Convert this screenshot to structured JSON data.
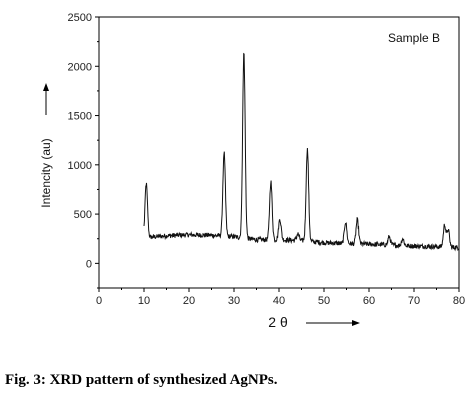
{
  "caption": "Fig. 3: XRD pattern of synthesized AgNPs.",
  "chart_data": {
    "type": "line",
    "title": "",
    "annotation": "Sample B",
    "xlabel": "2 θ",
    "ylabel": "Intencity (au)",
    "xlim": [
      0,
      80
    ],
    "ylim": [
      -250,
      2500
    ],
    "x_ticks": [
      0,
      10,
      20,
      30,
      40,
      50,
      60,
      70,
      80
    ],
    "y_ticks": [
      0,
      500,
      1000,
      1500,
      2000,
      2500
    ],
    "grid": false,
    "legend": "none",
    "line_color": "#111111",
    "noise_amplitude": 25,
    "baseline": [
      [
        10,
        260
      ],
      [
        15,
        280
      ],
      [
        20,
        290
      ],
      [
        25,
        285
      ],
      [
        30,
        270
      ],
      [
        35,
        240
      ],
      [
        40,
        240
      ],
      [
        45,
        230
      ],
      [
        50,
        210
      ],
      [
        55,
        200
      ],
      [
        60,
        195
      ],
      [
        65,
        185
      ],
      [
        70,
        175
      ],
      [
        75,
        170
      ],
      [
        80,
        160
      ]
    ],
    "peaks": [
      {
        "x": 10.5,
        "y": 810
      },
      {
        "x": 27.8,
        "y": 1120
      },
      {
        "x": 32.2,
        "y": 2140
      },
      {
        "x": 38.2,
        "y": 830
      },
      {
        "x": 40.2,
        "y": 450
      },
      {
        "x": 44.2,
        "y": 300
      },
      {
        "x": 46.3,
        "y": 1160
      },
      {
        "x": 54.8,
        "y": 420
      },
      {
        "x": 57.4,
        "y": 440
      },
      {
        "x": 64.5,
        "y": 270
      },
      {
        "x": 67.5,
        "y": 250
      },
      {
        "x": 76.8,
        "y": 390
      },
      {
        "x": 77.6,
        "y": 340
      }
    ]
  }
}
